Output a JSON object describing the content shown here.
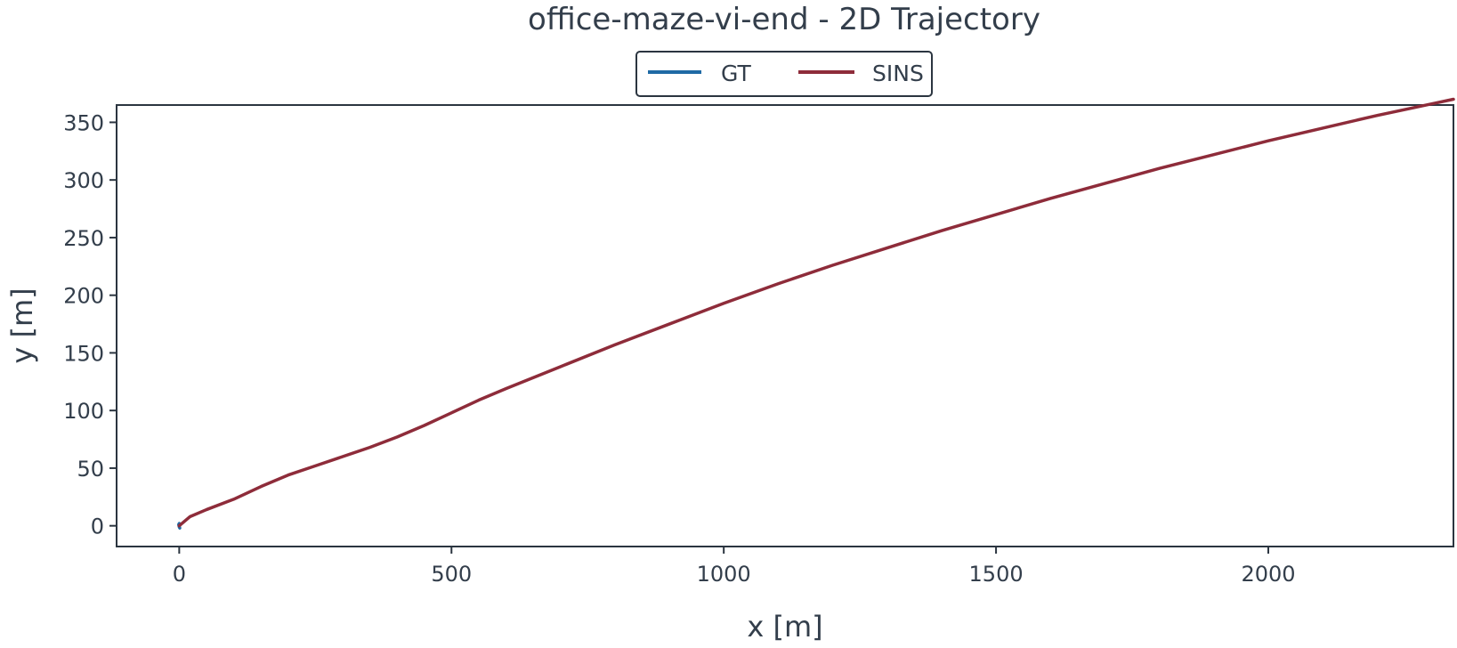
{
  "chart_data": {
    "type": "line",
    "title": "office-maze-vi-end - 2D Trajectory",
    "xlabel": "x [m]",
    "ylabel": "y [m]",
    "xlim": [
      -115,
      2340
    ],
    "ylim": [
      -18,
      365
    ],
    "xticks": [
      0,
      500,
      1000,
      1500,
      2000
    ],
    "xtick_labels": [
      "0",
      "500",
      "1000",
      "1500",
      "2000"
    ],
    "yticks": [
      0,
      50,
      100,
      150,
      200,
      250,
      300,
      350
    ],
    "ytick_labels": [
      "0",
      "50",
      "100",
      "150",
      "200",
      "250",
      "300",
      "350"
    ],
    "grid": false,
    "legend": {
      "placement": "top-center",
      "columns": 2
    },
    "series": [
      {
        "name": "GT",
        "color": "#1f6aa5",
        "x": [
          0,
          1,
          0,
          -1,
          0,
          1,
          0
        ],
        "y": [
          0,
          1,
          2,
          1,
          -1,
          -2,
          0
        ]
      },
      {
        "name": "SINS",
        "color": "#8e2c3a",
        "x": [
          0,
          20,
          50,
          100,
          150,
          200,
          250,
          300,
          350,
          400,
          450,
          500,
          550,
          600,
          700,
          800,
          900,
          1000,
          1100,
          1200,
          1300,
          1400,
          1500,
          1600,
          1700,
          1800,
          1900,
          2000,
          2100,
          2200,
          2300,
          2340
        ],
        "y": [
          0,
          8,
          14,
          23,
          34,
          44,
          52,
          60,
          68,
          77,
          87,
          98,
          109,
          119,
          138,
          157,
          175,
          193,
          210,
          226,
          241,
          256,
          270,
          284,
          297,
          310,
          322,
          334,
          345,
          356,
          366,
          370
        ]
      }
    ]
  }
}
